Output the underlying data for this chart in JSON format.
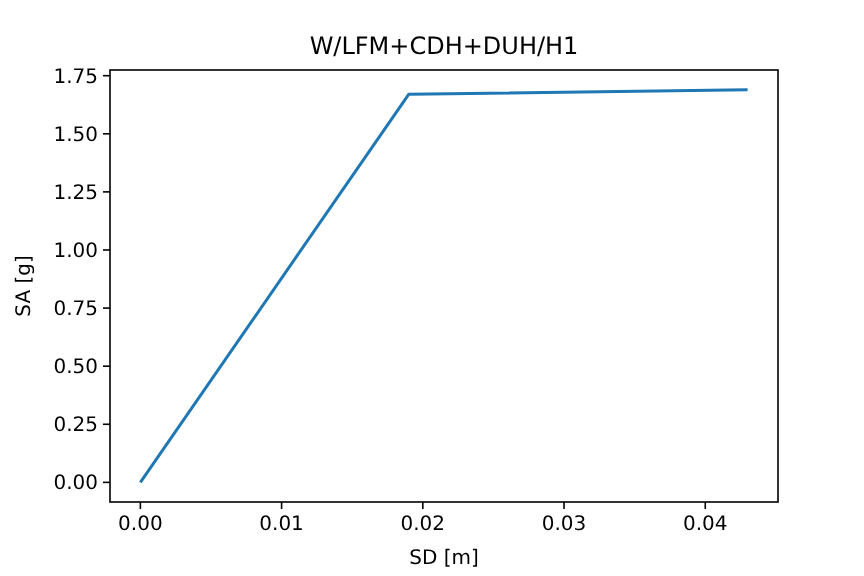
{
  "chart_data": {
    "type": "line",
    "title": "W/LFM+CDH+DUH/H1",
    "xlabel": "SD [m]",
    "ylabel": "SA [g]",
    "x": [
      0,
      0.019,
      0.043
    ],
    "series": [
      {
        "color": "#1f77b4",
        "values": [
          0,
          1.67,
          1.69
        ]
      }
    ],
    "xlim": [
      -0.00215,
      0.04515
    ],
    "ylim": [
      -0.0845,
      1.7745
    ],
    "xticks": [
      {
        "value": 0,
        "label": "0.00"
      },
      {
        "value": 0.01,
        "label": "0.01"
      },
      {
        "value": 0.02,
        "label": "0.02"
      },
      {
        "value": 0.03,
        "label": "0.03"
      },
      {
        "value": 0.04,
        "label": "0.04"
      }
    ],
    "yticks": [
      {
        "value": 0,
        "label": "0.00"
      },
      {
        "value": 0.25,
        "label": "0.25"
      },
      {
        "value": 0.5,
        "label": "0.50"
      },
      {
        "value": 0.75,
        "label": "0.75"
      },
      {
        "value": 1,
        "label": "1.00"
      },
      {
        "value": 1.25,
        "label": "1.25"
      },
      {
        "value": 1.5,
        "label": "1.50"
      },
      {
        "value": 1.75,
        "label": "1.75"
      }
    ],
    "grid": false,
    "marker": "none",
    "line_style": "solid"
  }
}
